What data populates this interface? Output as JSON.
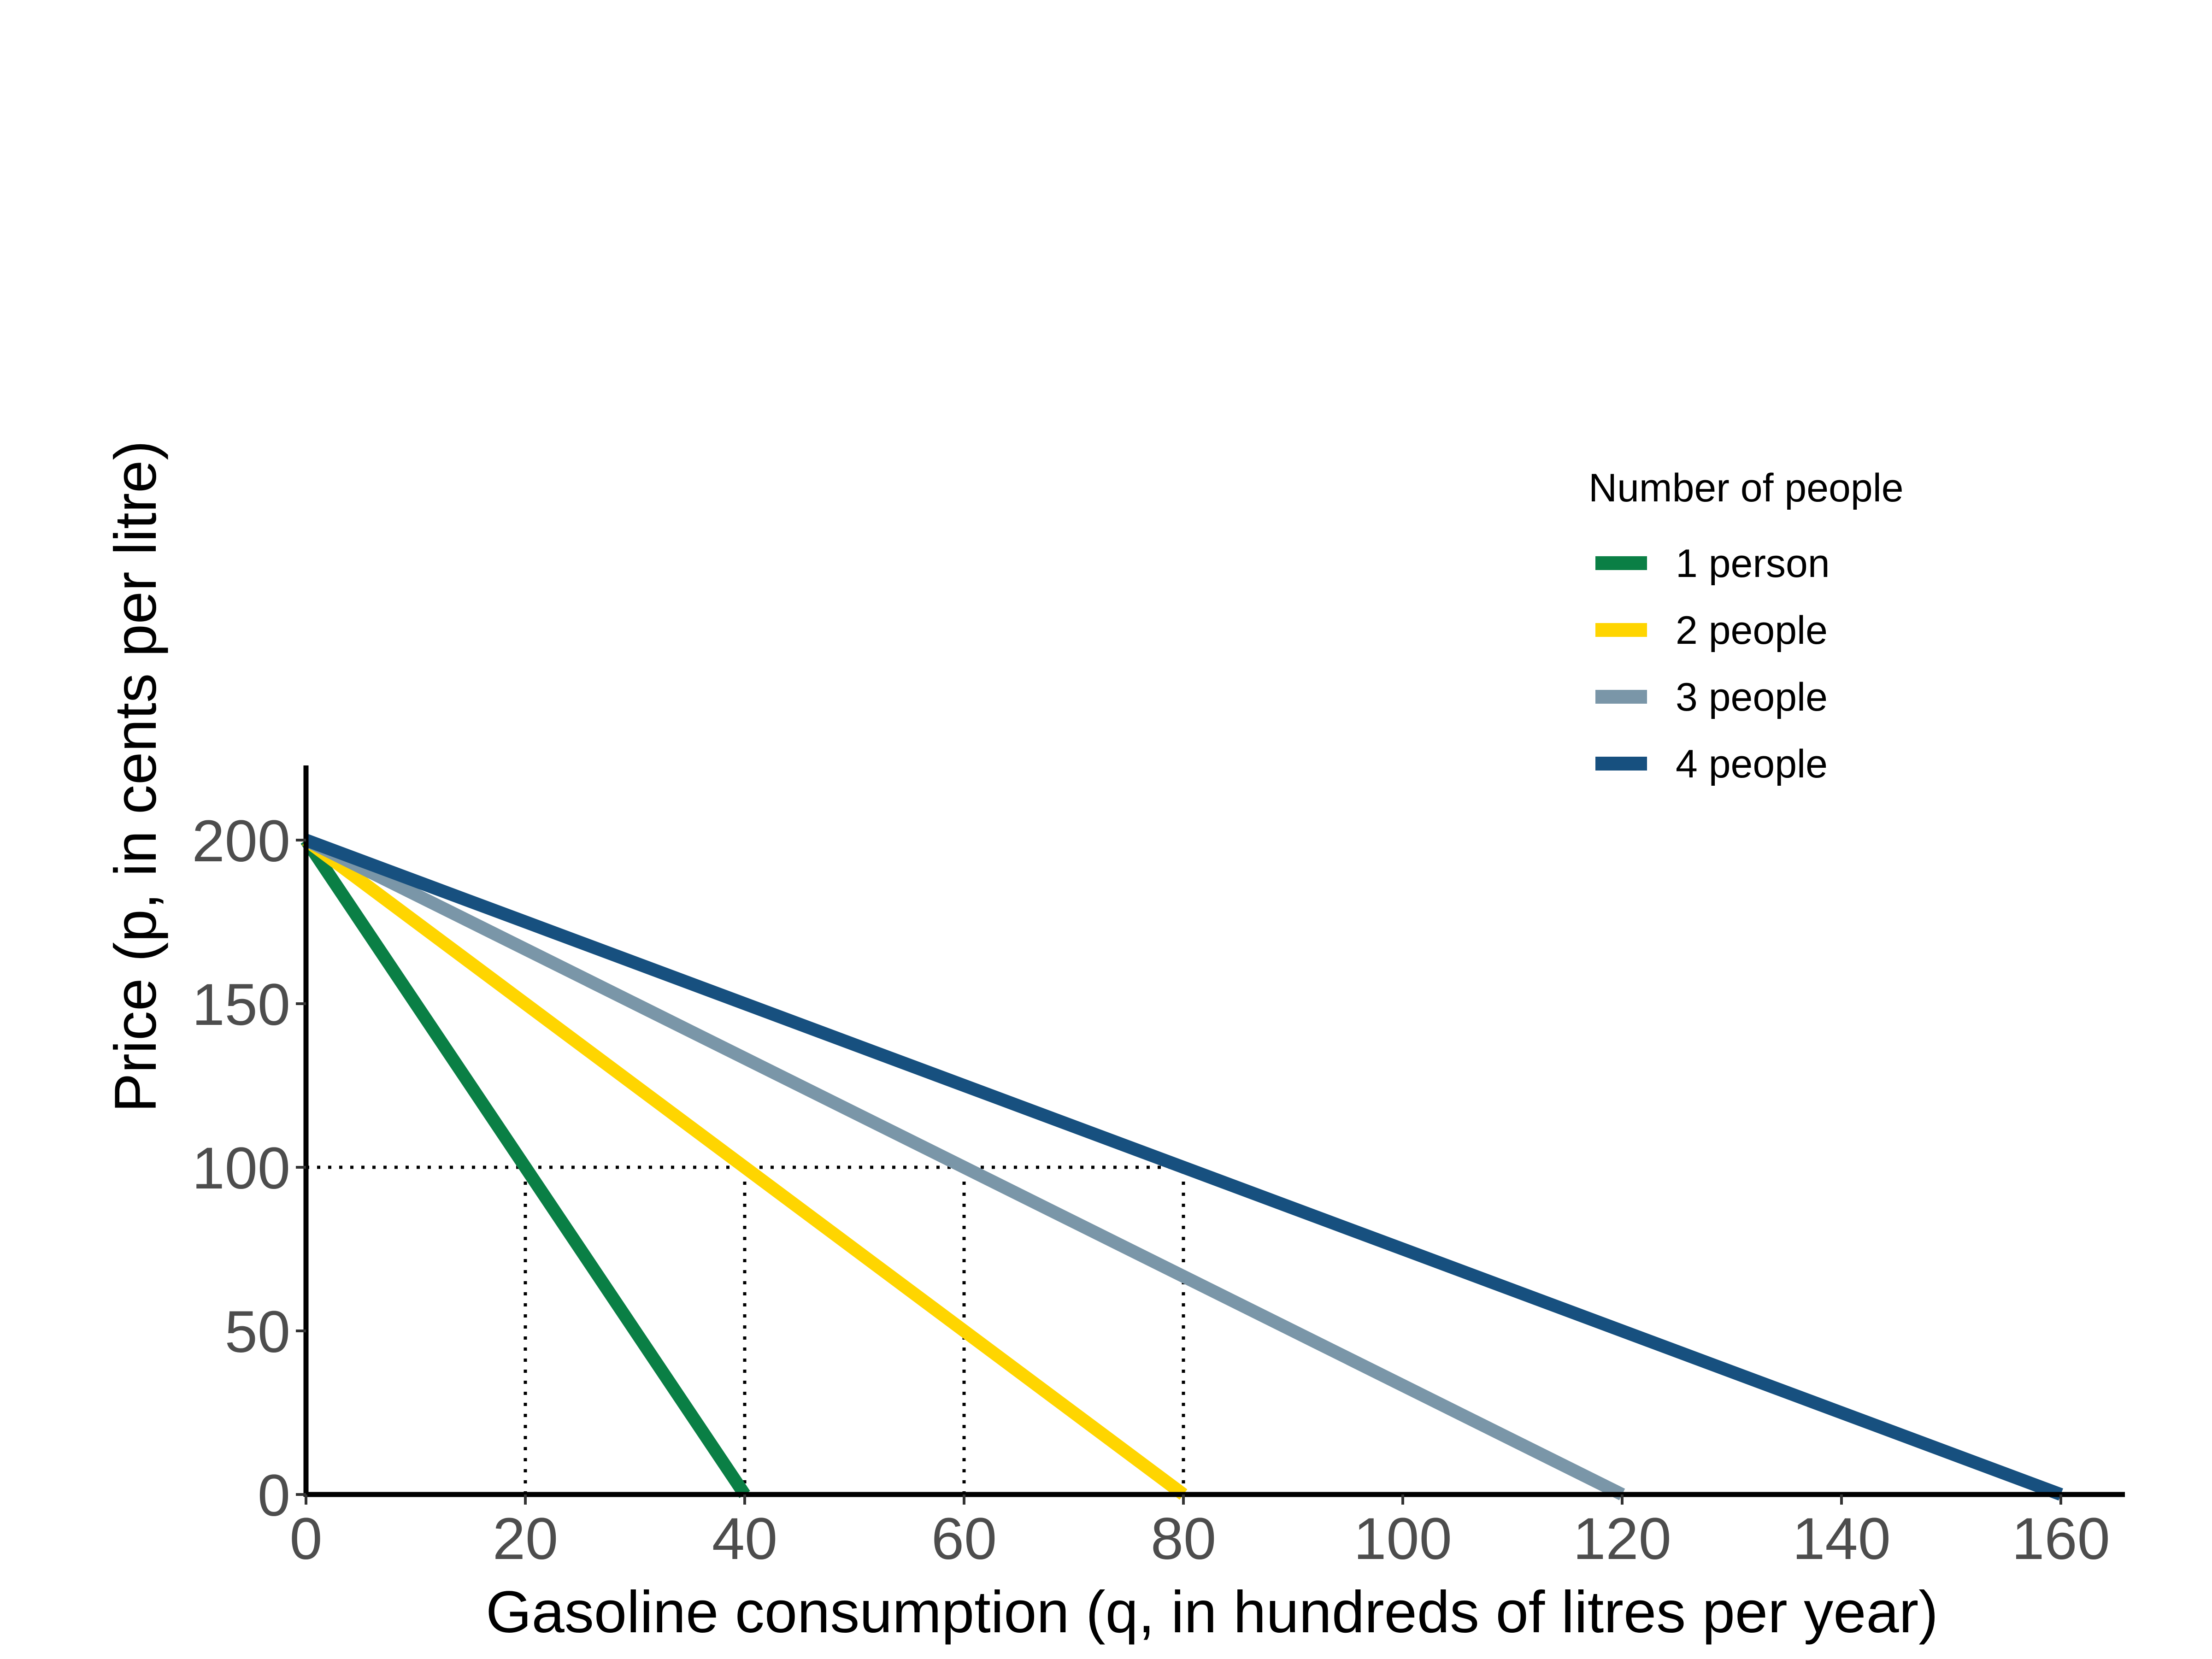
{
  "chart_data": {
    "type": "line",
    "title": "",
    "xlabel": "Gasoline consumption (q, in hundreds of litres per year)",
    "ylabel": "Price (p, in cents per litre)",
    "xlim": [
      0,
      165
    ],
    "ylim": [
      0,
      220
    ],
    "x_ticks": [
      0,
      20,
      40,
      60,
      80,
      100,
      120,
      140,
      160
    ],
    "y_ticks": [
      0,
      50,
      100,
      150,
      200
    ],
    "grid": false,
    "legend": {
      "title": "Number of people",
      "position": "right"
    },
    "series": [
      {
        "name": "1 person",
        "color": "#0a7f45",
        "x": [
          0,
          40
        ],
        "y": [
          200,
          0
        ]
      },
      {
        "name": "2 people",
        "color": "#ffd500",
        "x": [
          0,
          80
        ],
        "y": [
          200,
          0
        ]
      },
      {
        "name": "3 people",
        "color": "#7a96a8",
        "x": [
          0,
          120
        ],
        "y": [
          200,
          0
        ]
      },
      {
        "name": "4 people",
        "color": "#17507f",
        "x": [
          0,
          160
        ],
        "y": [
          200,
          0
        ]
      }
    ],
    "reference_lines": {
      "style": "dotted",
      "horizontal": {
        "y": 100,
        "x_from": 0,
        "x_to": 80
      },
      "vertical": [
        {
          "x": 20,
          "y_from": 0,
          "y_to": 100
        },
        {
          "x": 40,
          "y_from": 0,
          "y_to": 100
        },
        {
          "x": 60,
          "y_from": 0,
          "y_to": 100
        },
        {
          "x": 80,
          "y_from": 0,
          "y_to": 100
        }
      ]
    }
  }
}
